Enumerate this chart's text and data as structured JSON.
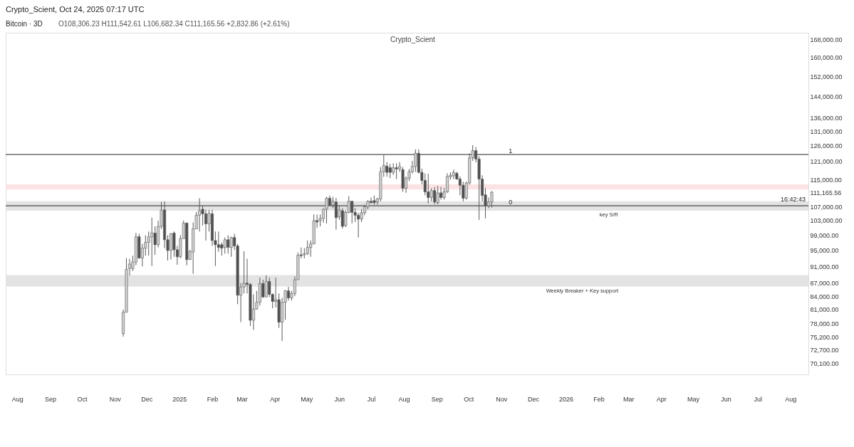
{
  "chart_data": {
    "type": "candlestick",
    "title": "Bitcoin · 3D",
    "subtitle": "O108,306.23  H111,542.61  L106,682.34  C111,165.56  +2,832.86 (+2.61%)",
    "annotations": [
      "Crypto_Scient, Oct 24, 2025 07:17 UTC",
      "Crypto_Scient",
      "16:42:43",
      {
        "text": "1",
        "x": "2025-11-08",
        "y": 123100
      },
      {
        "text": "0",
        "x": "2025-11-08",
        "y": 107200
      }
    ],
    "x": [
      "2024-11-09",
      "2024-11-12",
      "2024-11-15",
      "2024-11-18",
      "2024-11-21",
      "2024-11-24",
      "2024-11-27",
      "2024-11-30",
      "2024-12-03",
      "2024-12-06",
      "2024-12-09",
      "2024-12-12",
      "2024-12-15",
      "2024-12-18",
      "2024-12-21",
      "2024-12-24",
      "2024-12-27",
      "2024-12-30",
      "2025-01-02",
      "2025-01-05",
      "2025-01-08",
      "2025-01-11",
      "2025-01-14",
      "2025-01-17",
      "2025-01-20",
      "2025-01-23",
      "2025-01-26",
      "2025-01-29",
      "2025-02-01",
      "2025-02-04",
      "2025-02-07",
      "2025-02-10",
      "2025-02-13",
      "2025-02-16",
      "2025-02-19",
      "2025-02-22",
      "2025-02-25",
      "2025-02-28",
      "2025-03-03",
      "2025-03-06",
      "2025-03-09",
      "2025-03-12",
      "2025-03-15",
      "2025-03-18",
      "2025-03-21",
      "2025-03-24",
      "2025-03-27",
      "2025-03-30",
      "2025-04-02",
      "2025-04-05",
      "2025-04-08",
      "2025-04-11",
      "2025-04-14",
      "2025-04-17",
      "2025-04-20",
      "2025-04-23",
      "2025-04-26",
      "2025-04-29",
      "2025-05-02",
      "2025-05-05",
      "2025-05-08",
      "2025-05-11",
      "2025-05-14",
      "2025-05-17",
      "2025-05-20",
      "2025-05-23",
      "2025-05-26",
      "2025-05-29",
      "2025-06-01",
      "2025-06-04",
      "2025-06-07",
      "2025-06-10",
      "2025-06-13",
      "2025-06-16",
      "2025-06-19",
      "2025-06-22",
      "2025-06-25",
      "2025-06-28",
      "2025-07-01",
      "2025-07-04",
      "2025-07-07",
      "2025-07-10",
      "2025-07-13",
      "2025-07-16",
      "2025-07-19",
      "2025-07-22",
      "2025-07-25",
      "2025-07-28",
      "2025-07-31",
      "2025-08-03",
      "2025-08-06",
      "2025-08-09",
      "2025-08-12",
      "2025-08-15",
      "2025-08-18",
      "2025-08-21",
      "2025-08-24",
      "2025-08-27",
      "2025-08-30",
      "2025-09-02",
      "2025-09-05",
      "2025-09-08",
      "2025-09-11",
      "2025-09-14",
      "2025-09-17",
      "2025-09-20",
      "2025-09-23",
      "2025-09-26",
      "2025-09-29",
      "2025-10-02",
      "2025-10-05",
      "2025-10-08",
      "2025-10-11",
      "2025-10-14",
      "2025-10-17",
      "2025-10-20",
      "2025-10-23"
    ],
    "ohlc": [
      [
        75900,
        81000,
        75300,
        80400
      ],
      [
        80400,
        93100,
        80400,
        90300
      ],
      [
        90500,
        92900,
        88800,
        91600
      ],
      [
        90500,
        93700,
        89900,
        92100
      ],
      [
        92100,
        99600,
        91300,
        98600
      ],
      [
        98600,
        99400,
        92900,
        93100
      ],
      [
        93100,
        96700,
        91000,
        95600
      ],
      [
        95600,
        99000,
        93700,
        97100
      ],
      [
        97100,
        100000,
        93700,
        98600
      ],
      [
        98600,
        103800,
        91100,
        99600
      ],
      [
        99600,
        101400,
        93900,
        96500
      ],
      [
        96500,
        103000,
        95800,
        101400
      ],
      [
        101400,
        108300,
        100700,
        106000
      ],
      [
        106000,
        108500,
        95600,
        97800
      ],
      [
        97800,
        99000,
        92500,
        95000
      ],
      [
        95000,
        99600,
        92700,
        99400
      ],
      [
        99600,
        100000,
        93400,
        95200
      ],
      [
        95200,
        96200,
        91400,
        93400
      ],
      [
        93400,
        99000,
        93000,
        98100
      ],
      [
        98100,
        103000,
        98100,
        102300
      ],
      [
        102300,
        102500,
        91300,
        92700
      ],
      [
        92700,
        95200,
        92700,
        94700
      ],
      [
        94600,
        102500,
        89200,
        100700
      ],
      [
        100700,
        105400,
        100700,
        104500
      ],
      [
        104500,
        109400,
        100000,
        105800
      ],
      [
        106200,
        107200,
        101600,
        104900
      ],
      [
        104900,
        106000,
        97600,
        102100
      ],
      [
        102100,
        106000,
        100000,
        105000
      ],
      [
        104900,
        106000,
        96200,
        97600
      ],
      [
        97600,
        100000,
        91100,
        96500
      ],
      [
        96500,
        100000,
        94700,
        95800
      ],
      [
        96500,
        97100,
        93700,
        95600
      ],
      [
        95800,
        98400,
        94200,
        97800
      ],
      [
        97800,
        99000,
        94200,
        95800
      ],
      [
        95800,
        98600,
        93400,
        98400
      ],
      [
        98400,
        99400,
        95200,
        96200
      ],
      [
        96200,
        96700,
        82200,
        84200
      ],
      [
        84200,
        87000,
        78300,
        86100
      ],
      [
        86100,
        94800,
        84600,
        87000
      ],
      [
        87000,
        92900,
        84600,
        86700
      ],
      [
        86700,
        87000,
        77500,
        78700
      ],
      [
        78700,
        84400,
        76700,
        81100
      ],
      [
        81100,
        85200,
        81000,
        82600
      ],
      [
        82600,
        88300,
        81900,
        86900
      ],
      [
        86900,
        87800,
        83600,
        83800
      ],
      [
        83800,
        88800,
        83800,
        87400
      ],
      [
        87400,
        88300,
        83800,
        84400
      ],
      [
        84400,
        84600,
        81300,
        82800
      ],
      [
        82800,
        88300,
        81500,
        83200
      ],
      [
        83200,
        84600,
        77100,
        78300
      ],
      [
        78300,
        83600,
        74400,
        82600
      ],
      [
        82600,
        85400,
        78800,
        85200
      ],
      [
        85200,
        86100,
        83000,
        83600
      ],
      [
        83600,
        85200,
        83000,
        84600
      ],
      [
        84600,
        88600,
        84000,
        87800
      ],
      [
        87800,
        94500,
        87800,
        93800
      ],
      [
        93900,
        95800,
        93000,
        93700
      ],
      [
        93900,
        95600,
        93000,
        94200
      ],
      [
        94200,
        97600,
        93900,
        95800
      ],
      [
        95800,
        97600,
        93400,
        96700
      ],
      [
        96700,
        104700,
        96700,
        103000
      ],
      [
        103000,
        104700,
        101000,
        102600
      ],
      [
        103000,
        104700,
        101400,
        103600
      ],
      [
        103600,
        106400,
        102400,
        106200
      ],
      [
        106200,
        109800,
        102200,
        109400
      ],
      [
        109400,
        110200,
        107200,
        107400
      ],
      [
        107400,
        109800,
        106500,
        108500
      ],
      [
        108300,
        109500,
        100500,
        103800
      ],
      [
        104000,
        107000,
        103200,
        106000
      ],
      [
        105800,
        106500,
        100800,
        101400
      ],
      [
        101600,
        105800,
        101200,
        105300
      ],
      [
        105300,
        110000,
        105000,
        108500
      ],
      [
        108500,
        108700,
        102200,
        105300
      ],
      [
        105300,
        106500,
        102600,
        104500
      ],
      [
        104500,
        105200,
        98400,
        103400
      ],
      [
        103400,
        106200,
        102600,
        105200
      ],
      [
        105200,
        107500,
        104500,
        106900
      ],
      [
        106900,
        108800,
        106200,
        108500
      ],
      [
        108500,
        109600,
        107800,
        108100
      ],
      [
        108700,
        110200,
        107500,
        108100
      ],
      [
        108300,
        109500,
        107500,
        109200
      ],
      [
        109200,
        119000,
        108500,
        117500
      ],
      [
        117500,
        123000,
        115900,
        119500
      ],
      [
        119300,
        120600,
        115900,
        117300
      ],
      [
        118800,
        120000,
        115500,
        117300
      ],
      [
        117300,
        120200,
        116500,
        118800
      ],
      [
        118800,
        120200,
        115200,
        118400
      ],
      [
        118400,
        120600,
        117500,
        119200
      ],
      [
        118200,
        119000,
        111300,
        112400
      ],
      [
        112400,
        116000,
        111000,
        115500
      ],
      [
        115500,
        118400,
        114600,
        117500
      ],
      [
        117500,
        121000,
        117000,
        119200
      ],
      [
        119200,
        124800,
        117500,
        123500
      ],
      [
        123500,
        124800,
        117000,
        117300
      ],
      [
        117300,
        118500,
        113600,
        114800
      ],
      [
        114800,
        117000,
        110300,
        111300
      ],
      [
        111300,
        116900,
        107900,
        109600
      ],
      [
        109600,
        112400,
        108500,
        111700
      ],
      [
        111700,
        112800,
        107600,
        108300
      ],
      [
        108100,
        113100,
        107600,
        111000
      ],
      [
        111000,
        112800,
        109000,
        109600
      ],
      [
        109600,
        112400,
        109000,
        111300
      ],
      [
        111300,
        117000,
        110900,
        116000
      ],
      [
        115900,
        117300,
        115000,
        116400
      ],
      [
        116200,
        118200,
        115200,
        117300
      ],
      [
        117000,
        117500,
        115000,
        115200
      ],
      [
        115200,
        116000,
        110300,
        113300
      ],
      [
        113300,
        114400,
        108500,
        109400
      ],
      [
        109400,
        114400,
        109000,
        114000
      ],
      [
        114000,
        123500,
        113500,
        122000
      ],
      [
        122000,
        126200,
        121000,
        124400
      ],
      [
        124400,
        125600,
        120500,
        121600
      ],
      [
        121600,
        122500,
        103200,
        115200
      ],
      [
        115200,
        116400,
        108500,
        110200
      ],
      [
        110400,
        112400,
        103600,
        107200
      ],
      [
        107200,
        109600,
        106500,
        108300
      ],
      [
        108306.23,
        111542.61,
        106682.34,
        111165.56
      ]
    ],
    "colors": [
      "#cfcfcf",
      "#cfcfcf",
      "#cfcfcf",
      "#cfcfcf",
      "#cfcfcf",
      "#4f4f4f",
      "#cfcfcf",
      "#cfcfcf",
      "#cfcfcf",
      "#cfcfcf",
      "#4f4f4f",
      "#cfcfcf",
      "#cfcfcf",
      "#4f4f4f",
      "#4f4f4f",
      "#cfcfcf",
      "#4f4f4f",
      "#4f4f4f",
      "#cfcfcf",
      "#cfcfcf",
      "#4f4f4f",
      "#cfcfcf",
      "#cfcfcf",
      "#cfcfcf",
      "#cfcfcf",
      "#4f4f4f",
      "#4f4f4f",
      "#cfcfcf",
      "#4f4f4f",
      "#4f4f4f",
      "#4f4f4f",
      "#4f4f4f",
      "#cfcfcf",
      "#4f4f4f",
      "#cfcfcf",
      "#4f4f4f",
      "#4f4f4f",
      "#cfcfcf",
      "#cfcfcf",
      "#4f4f4f",
      "#4f4f4f",
      "#cfcfcf",
      "#cfcfcf",
      "#cfcfcf",
      "#4f4f4f",
      "#cfcfcf",
      "#4f4f4f",
      "#4f4f4f",
      "#cfcfcf",
      "#4f4f4f",
      "#cfcfcf",
      "#cfcfcf",
      "#4f4f4f",
      "#cfcfcf",
      "#cfcfcf",
      "#cfcfcf",
      "#4f4f4f",
      "#cfcfcf",
      "#cfcfcf",
      "#cfcfcf",
      "#cfcfcf",
      "#4f4f4f",
      "#cfcfcf",
      "#cfcfcf",
      "#cfcfcf",
      "#4f4f4f",
      "#cfcfcf",
      "#4f4f4f",
      "#cfcfcf",
      "#4f4f4f",
      "#cfcfcf",
      "#cfcfcf",
      "#4f4f4f",
      "#4f4f4f",
      "#4f4f4f",
      "#cfcfcf",
      "#cfcfcf",
      "#cfcfcf",
      "#4f4f4f",
      "#4f4f4f",
      "#cfcfcf",
      "#cfcfcf",
      "#cfcfcf",
      "#4f4f4f",
      "#4f4f4f",
      "#cfcfcf",
      "#4f4f4f",
      "#cfcfcf",
      "#4f4f4f",
      "#cfcfcf",
      "#cfcfcf",
      "#cfcfcf",
      "#cfcfcf",
      "#4f4f4f",
      "#4f4f4f",
      "#4f4f4f",
      "#4f4f4f",
      "#cfcfcf",
      "#4f4f4f",
      "#cfcfcf",
      "#4f4f4f",
      "#cfcfcf",
      "#cfcfcf",
      "#cfcfcf",
      "#cfcfcf",
      "#4f4f4f",
      "#4f4f4f",
      "#4f4f4f",
      "#cfcfcf",
      "#cfcfcf",
      "#cfcfcf",
      "#4f4f4f",
      "#4f4f4f",
      "#4f4f4f",
      "#4f4f4f",
      "#cfcfcf",
      "#cfcfcf"
    ],
    "xlim": [
      "2024-07-21",
      "2026-08-18"
    ],
    "xticks": [
      {
        "value": "2024-08-01",
        "label": "Aug"
      },
      {
        "value": "2024-09-01",
        "label": "Sep"
      },
      {
        "value": "2024-10-01",
        "label": "Oct"
      },
      {
        "value": "2024-11-01",
        "label": "Nov"
      },
      {
        "value": "2024-12-01",
        "label": "Dec"
      },
      {
        "value": "2025-01-01",
        "label": "2025"
      },
      {
        "value": "2025-02-01",
        "label": "Feb"
      },
      {
        "value": "2025-03-01",
        "label": "Mar"
      },
      {
        "value": "2025-04-01",
        "label": "Apr"
      },
      {
        "value": "2025-05-01",
        "label": "May"
      },
      {
        "value": "2025-06-01",
        "label": "Jun"
      },
      {
        "value": "2025-07-01",
        "label": "Jul"
      },
      {
        "value": "2025-08-01",
        "label": "Aug"
      },
      {
        "value": "2025-09-01",
        "label": "Sep"
      },
      {
        "value": "2025-10-01",
        "label": "Oct"
      },
      {
        "value": "2025-11-01",
        "label": "Nov"
      },
      {
        "value": "2025-12-01",
        "label": "Dec"
      },
      {
        "value": "2026-01-01",
        "label": "2026"
      },
      {
        "value": "2026-02-01",
        "label": "Feb"
      },
      {
        "value": "2026-03-01",
        "label": "Mar"
      },
      {
        "value": "2026-04-01",
        "label": "Apr"
      },
      {
        "value": "2026-05-01",
        "label": "May"
      },
      {
        "value": "2026-06-01",
        "label": "Jun"
      },
      {
        "value": "2026-07-01",
        "label": "Jul"
      },
      {
        "value": "2026-08-01",
        "label": "Aug"
      }
    ],
    "ylim": [
      68000,
      171000
    ],
    "log": true,
    "yticks": [
      {
        "value": 70100,
        "label": "70,100.00"
      },
      {
        "value": 72700,
        "label": "72,700.00"
      },
      {
        "value": 75200,
        "label": "75,200.00"
      },
      {
        "value": 78000,
        "label": "78,000.00"
      },
      {
        "value": 81000,
        "label": "81,000.00"
      },
      {
        "value": 84000,
        "label": "84,000.00"
      },
      {
        "value": 87000,
        "label": "87,000.00"
      },
      {
        "value": 91000,
        "label": "91,000.00"
      },
      {
        "value": 95000,
        "label": "95,000.00"
      },
      {
        "value": 99000,
        "label": "99,000.00"
      },
      {
        "value": 103000,
        "label": "103,000.00"
      },
      {
        "value": 107000,
        "label": "107,000.00"
      },
      {
        "value": 111165.56,
        "label": "111,165.56"
      },
      {
        "value": 115000,
        "label": "115,000.00"
      },
      {
        "value": 121000,
        "label": "121,000.00"
      },
      {
        "value": 126000,
        "label": "126,000.00"
      },
      {
        "value": 131000,
        "label": "131,000.00"
      },
      {
        "value": 136000,
        "label": "136,000.00"
      },
      {
        "value": 144000,
        "label": "144,000.00"
      },
      {
        "value": 152000,
        "label": "152,000.00"
      },
      {
        "value": 160000,
        "label": "160,000.00"
      },
      {
        "value": 168000,
        "label": "168,000.00"
      }
    ],
    "bands": [
      {
        "axis": "y",
        "from": 105800,
        "to": 108500,
        "label": "key S/R",
        "color": "#e3e3e3"
      },
      {
        "axis": "y",
        "from": 86200,
        "to": 88900,
        "label": "Weekly Breaker + Key support",
        "color": "#e3e3e3"
      },
      {
        "axis": "y",
        "from": 112000,
        "to": 113600,
        "label": null,
        "color": "#fbe3e5"
      }
    ],
    "ref_lines": [
      {
        "axis": "y",
        "value": 123100,
        "color": "#222222"
      },
      {
        "axis": "y",
        "value": 107200,
        "color": "#222222"
      }
    ]
  }
}
